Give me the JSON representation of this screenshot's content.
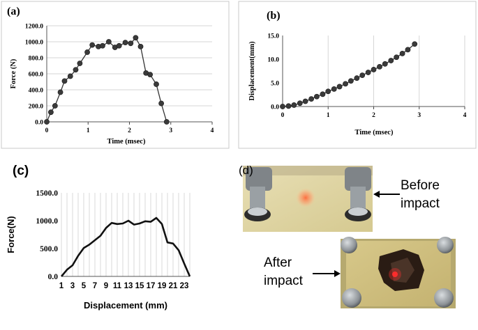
{
  "chart_data": [
    {
      "id": "a",
      "type": "scatter-line",
      "panel_label": "(a)",
      "xlabel": "Time (msec)",
      "ylabel": "Force (N)",
      "xlim": [
        0,
        4
      ],
      "ylim": [
        0,
        1200
      ],
      "x_ticks": [
        "0",
        "1",
        "2",
        "3",
        "4"
      ],
      "y_ticks": [
        "0.0",
        "200.0",
        "400.0",
        "600.0",
        "800.0",
        "1000.0",
        "1200.0"
      ],
      "grid": "horizontal",
      "series": [
        {
          "name": "Force",
          "x": [
            0.0,
            0.1,
            0.2,
            0.33,
            0.43,
            0.57,
            0.7,
            0.8,
            0.98,
            1.1,
            1.25,
            1.35,
            1.5,
            1.65,
            1.75,
            1.9,
            2.03,
            2.15,
            2.27,
            2.4,
            2.5,
            2.65,
            2.77,
            2.9
          ],
          "y": [
            0,
            120,
            200,
            370,
            510,
            570,
            650,
            730,
            870,
            960,
            940,
            950,
            1000,
            930,
            950,
            990,
            980,
            1050,
            940,
            610,
            590,
            470,
            230,
            0
          ]
        }
      ]
    },
    {
      "id": "b",
      "type": "scatter-line",
      "panel_label": "(b)",
      "xlabel": "Time (msec)",
      "ylabel": "Displacement(mm)",
      "xlim": [
        0,
        4
      ],
      "ylim": [
        0,
        15
      ],
      "x_ticks": [
        "0",
        "1",
        "2",
        "3",
        "4"
      ],
      "y_ticks": [
        "0.0",
        "5.0",
        "10.0",
        "15.0"
      ],
      "grid": "vertical",
      "series": [
        {
          "name": "Displacement",
          "x": [
            0.0,
            0.13,
            0.25,
            0.38,
            0.5,
            0.63,
            0.75,
            0.88,
            1.0,
            1.13,
            1.25,
            1.38,
            1.5,
            1.63,
            1.75,
            1.88,
            2.0,
            2.13,
            2.25,
            2.38,
            2.5,
            2.63,
            2.75,
            2.9
          ],
          "y": [
            0.0,
            0.1,
            0.3,
            0.7,
            1.1,
            1.6,
            2.1,
            2.6,
            3.2,
            3.7,
            4.2,
            4.8,
            5.4,
            6.0,
            6.6,
            7.2,
            7.8,
            8.4,
            9.0,
            9.7,
            10.4,
            11.2,
            12.0,
            13.2
          ]
        }
      ]
    },
    {
      "id": "c",
      "type": "line",
      "panel_label": "(c)",
      "xlabel": "Displacement (mm)",
      "ylabel": "Force(N)",
      "ylim": [
        0,
        1500
      ],
      "x_ticks": [
        "1",
        "3",
        "5",
        "7",
        "9",
        "11",
        "13",
        "15",
        "17",
        "19",
        "21",
        "23"
      ],
      "y_ticks": [
        "0.0",
        "500.0",
        "1000.0",
        "1500.0"
      ],
      "grid": "vertical",
      "series": [
        {
          "name": "Force",
          "x": [
            1,
            2,
            3,
            4,
            5,
            6,
            7,
            8,
            9,
            10,
            11,
            12,
            13,
            14,
            15,
            16,
            17,
            18,
            19,
            20,
            21,
            22,
            23,
            24
          ],
          "y": [
            0,
            120,
            200,
            370,
            510,
            570,
            650,
            730,
            870,
            960,
            940,
            950,
            1000,
            930,
            950,
            990,
            980,
            1050,
            940,
            610,
            590,
            470,
            230,
            0
          ]
        }
      ]
    }
  ],
  "photos": {
    "panel_label": "(d)",
    "before_label": [
      "Before",
      "impact"
    ],
    "after_label": [
      "After",
      "impact"
    ]
  }
}
